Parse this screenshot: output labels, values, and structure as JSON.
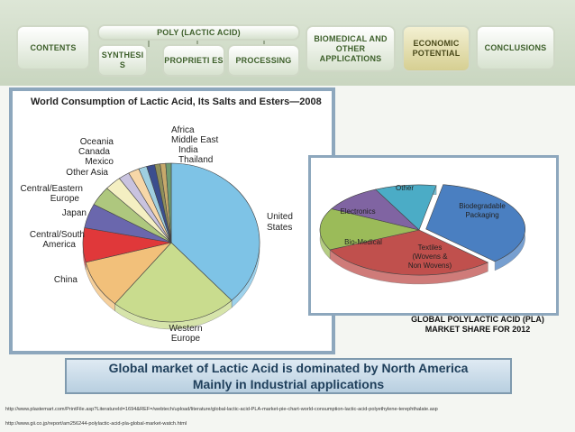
{
  "nav": {
    "contents": "Contents",
    "poly_lactic_acid": "Poly (Lactic acid)",
    "synthesis": "Synthesi s",
    "properties": "Proprieti es",
    "processing": "Processing",
    "biomedical": "Biomedical and other Applications",
    "economic": "Economic Potential",
    "conclusions": "Conclusions"
  },
  "left_chart_title": "World Consumption of Lactic Acid, Its Salts and Esters—2008",
  "right_caption_line1": "GLOBAL POLYLACTIC ACID (PLA)",
  "right_caption_line2": "MARKET SHARE FOR 2012",
  "banner": {
    "line1": "Global market of Lactic Acid is dominated by North America",
    "line2": "Mainly in Industrial applications"
  },
  "sources": [
    "http://www.plastemart.com/PrintFile.asp?LiteratureId=1694&REF=/webtech/upload/literature/global-lactic-acid-PLA-market-pie-chart-world-consumption-lactic-acid-polyethylene-terephthalate.asp",
    "http://www.gii.co.jp/report/am256244-polylactic-acid-pla-global-market-watch.html"
  ],
  "chart_data": [
    {
      "type": "pie",
      "title": "World Consumption of Lactic Acid, Its Salts and Esters—2008",
      "categories": [
        "United States",
        "Western Europe",
        "China",
        "Central/South America",
        "Japan",
        "Central/Eastern Europe",
        "Other Asia",
        "Mexico",
        "Canada",
        "Oceania",
        "Africa",
        "Middle East",
        "India",
        "Thailand"
      ],
      "values": [
        38,
        23,
        10,
        7,
        5,
        4,
        3,
        2,
        2,
        1.5,
        1.5,
        1,
        1,
        1
      ],
      "colors": [
        "#7ec3e6",
        "#c9dc8e",
        "#f2c07a",
        "#e0383a",
        "#6a67ad",
        "#aec77e",
        "#f4efc2",
        "#c9c3df",
        "#f7d7a8",
        "#9fcfe0",
        "#3b4e8e",
        "#8f8f5a",
        "#c7a96b",
        "#6f9c72"
      ]
    },
    {
      "type": "pie",
      "title": "",
      "categories": [
        "Biodegradable Packaging",
        "Textiles (Wovens & Non Wovens)",
        "Bio-Medical",
        "Electronics",
        "Other"
      ],
      "values": [
        35,
        30,
        15,
        10,
        10
      ],
      "colors": [
        "#4a7fc1",
        "#c0504d",
        "#9bbb59",
        "#8064a2",
        "#4bacc6"
      ]
    }
  ]
}
